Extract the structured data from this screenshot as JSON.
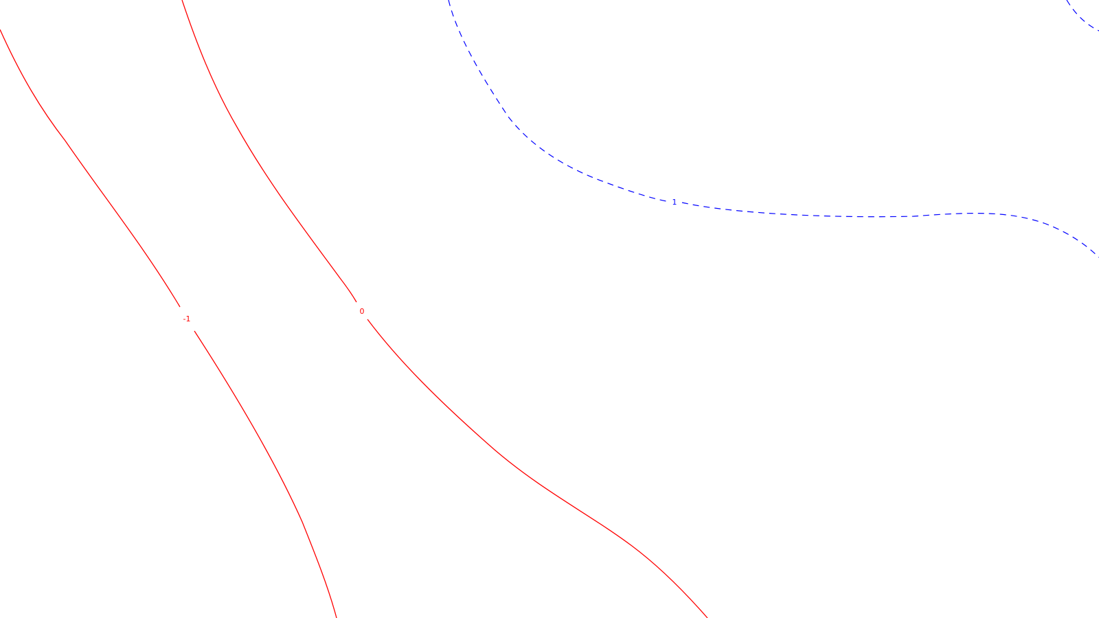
{
  "map": {
    "colors": {
      "negative_contour": "#ff0000",
      "positive_contour": "#0000ff",
      "background": "#ffffff"
    },
    "contours": [
      {
        "level": -1,
        "label": "-1",
        "style": "solid",
        "color": "#ff0000"
      },
      {
        "level": 0,
        "label": "0",
        "style": "solid",
        "color": "#ff0000"
      },
      {
        "level": 1,
        "label": "1",
        "style": "dashed",
        "color": "#0000ff"
      }
    ]
  }
}
